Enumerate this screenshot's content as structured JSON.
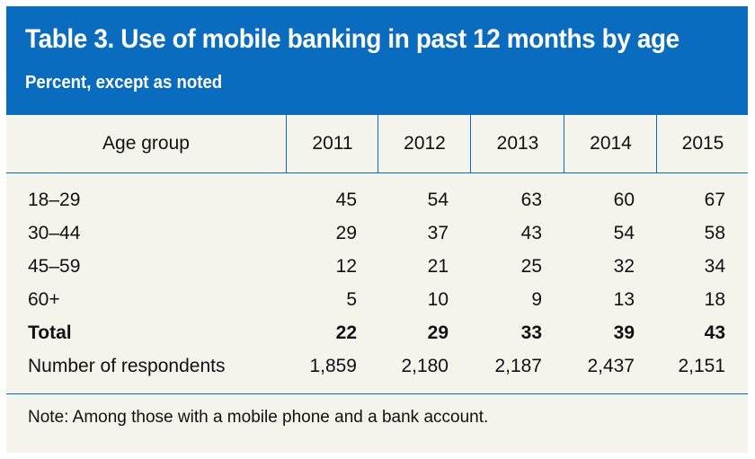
{
  "table": {
    "title": "Table 3. Use of mobile banking in past 12 months by age",
    "subtitle": "Percent, except as noted",
    "column_headers": [
      "Age group",
      "2011",
      "2012",
      "2013",
      "2014",
      "2015"
    ],
    "rows": [
      {
        "label": "18–29",
        "values": [
          "45",
          "54",
          "63",
          "60",
          "67"
        ],
        "bold": false
      },
      {
        "label": "30–44",
        "values": [
          "29",
          "37",
          "43",
          "54",
          "58"
        ],
        "bold": false
      },
      {
        "label": "45–59",
        "values": [
          "12",
          "21",
          "25",
          "32",
          "34"
        ],
        "bold": false
      },
      {
        "label": "60+",
        "values": [
          "5",
          "10",
          "9",
          "13",
          "18"
        ],
        "bold": false
      },
      {
        "label": "Total",
        "values": [
          "22",
          "29",
          "33",
          "39",
          "43"
        ],
        "bold": true
      },
      {
        "label": "Number of respondents",
        "values": [
          "1,859",
          "2,180",
          "2,187",
          "2,437",
          "2,151"
        ],
        "bold": false
      }
    ],
    "note": "Note: Among those with a mobile phone and a bank account."
  },
  "colors": {
    "header_background": "#0a6cbf",
    "table_background": "#f4f3ec",
    "rule": "#0a6cbf"
  }
}
